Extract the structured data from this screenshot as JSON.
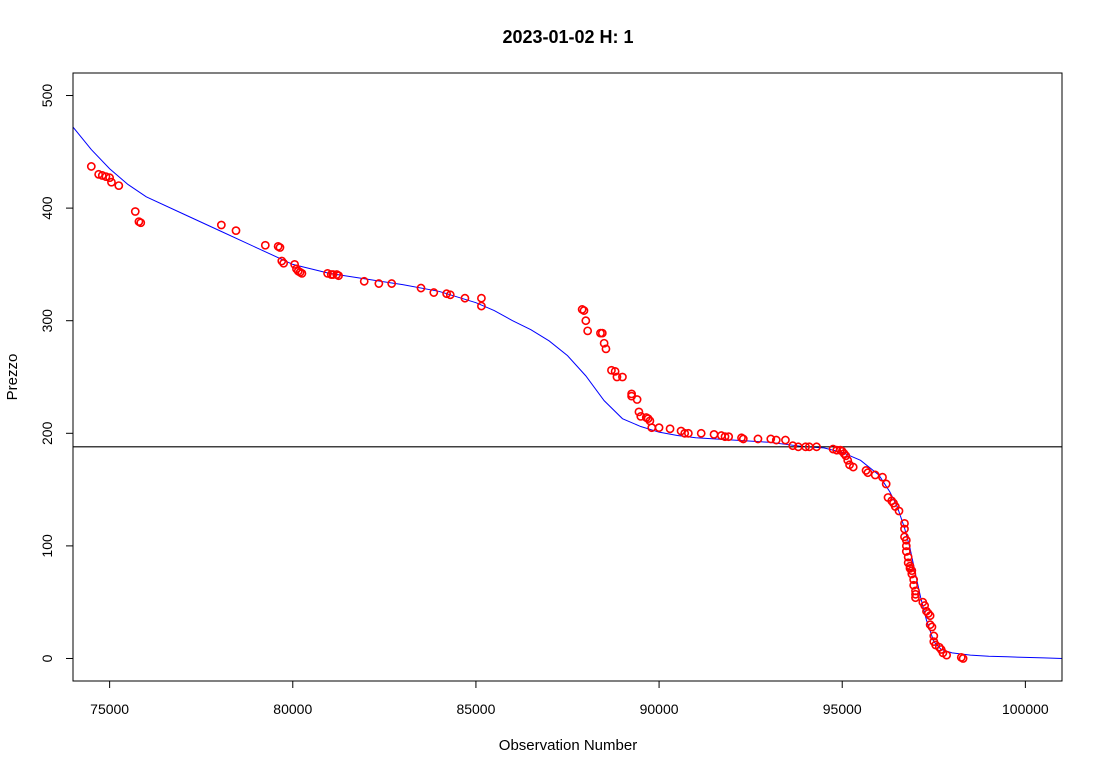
{
  "chart_data": {
    "type": "scatter",
    "title": "2023-01-02 H: 1",
    "xlabel": "Observation Number",
    "ylabel": "Prezzo",
    "xlim": [
      74000,
      101000
    ],
    "ylim": [
      -20,
      520
    ],
    "x_ticks": [
      75000,
      80000,
      85000,
      90000,
      95000,
      100000
    ],
    "y_ticks": [
      0,
      100,
      200,
      300,
      400,
      500
    ],
    "grid": false,
    "legend": "none",
    "colors": {
      "points": "#ff0000",
      "fit_line": "#0000ff",
      "hline": "#000000",
      "frame": "#000000"
    },
    "hline": 188,
    "series": [
      {
        "kind": "points",
        "x": [
          74500,
          74700,
          74800,
          74900,
          75000,
          75050,
          75250,
          75700,
          75800,
          75850,
          78050,
          78450,
          79250,
          79600,
          79650,
          79700,
          79750,
          80050,
          80100,
          80150,
          80200,
          80250,
          80950,
          81050,
          81100,
          81200,
          81250,
          81950,
          82350,
          82700,
          83500,
          83850,
          84200,
          84300,
          84700,
          85150,
          85150,
          87900,
          87950,
          88000,
          88050,
          88400,
          88450,
          88500,
          88550,
          88700,
          88800,
          88850,
          89000,
          89250,
          89250,
          89400,
          89450,
          89500,
          89650,
          89700,
          89750,
          89800,
          90000,
          90300,
          90600,
          90700,
          90800,
          91150,
          91500,
          91700,
          91800,
          91900,
          92250,
          92300,
          92700,
          93050,
          93200,
          93450,
          93650,
          93800,
          94000,
          94100,
          94300,
          94750,
          94850,
          94950,
          95000,
          95050,
          95100,
          95150,
          95200,
          95300,
          95650,
          95700,
          95900,
          96100,
          96200,
          96250,
          96350,
          96400,
          96450,
          96550,
          96700,
          96700,
          96700,
          96750,
          96750,
          96750,
          96800,
          96800,
          96850,
          96850,
          96900,
          96900,
          96950,
          96950,
          97000,
          97000,
          97000,
          97200,
          97250,
          97300,
          97350,
          97400,
          97400,
          97450,
          97500,
          97500,
          97550,
          97650,
          97700,
          97750,
          97850,
          98250,
          98300
        ],
        "y": [
          437,
          430,
          429,
          428,
          427,
          423,
          420,
          397,
          388,
          387,
          385,
          380,
          367,
          366,
          365,
          353,
          351,
          350,
          346,
          344,
          343,
          342,
          342,
          341,
          341,
          341,
          340,
          335,
          333,
          333,
          329,
          325,
          324,
          323,
          320,
          320,
          313,
          310,
          309,
          300,
          291,
          289,
          289,
          280,
          275,
          256,
          255,
          250,
          250,
          235,
          233,
          230,
          219,
          215,
          214,
          213,
          211,
          205,
          205,
          204,
          202,
          200,
          200,
          200,
          199,
          198,
          197,
          197,
          196,
          195,
          195,
          195,
          194,
          194,
          189,
          188,
          188,
          188,
          188,
          186,
          185,
          185,
          184,
          182,
          180,
          176,
          172,
          170,
          167,
          165,
          163,
          161,
          155,
          143,
          140,
          138,
          135,
          131,
          120,
          115,
          108,
          105,
          100,
          95,
          90,
          85,
          82,
          80,
          78,
          75,
          70,
          65,
          60,
          57,
          54,
          50,
          47,
          42,
          40,
          38,
          30,
          28,
          20,
          15,
          12,
          10,
          8,
          5,
          3,
          1,
          0
        ]
      },
      {
        "kind": "fit_line",
        "x": [
          74000,
          74500,
          75000,
          75500,
          76000,
          77000,
          78000,
          79000,
          80000,
          81000,
          82000,
          83000,
          84000,
          85000,
          85500,
          86000,
          86500,
          87000,
          87500,
          88000,
          88500,
          89000,
          89500,
          90000,
          90500,
          91000,
          91500,
          92000,
          92500,
          93000,
          93500,
          94000,
          94500,
          95000,
          95500,
          96000,
          96300,
          96500,
          96700,
          96850,
          97000,
          97150,
          97300,
          97500,
          97700,
          98000,
          98500,
          99000,
          99500,
          100000,
          100500,
          101000
        ],
        "y": [
          472,
          452,
          435,
          421,
          410,
          395,
          380,
          365,
          350,
          342,
          337,
          332,
          326,
          316,
          309,
          300,
          292,
          282,
          269,
          251,
          229,
          213,
          206,
          201,
          198,
          196,
          195,
          194,
          193,
          192,
          190,
          188,
          187,
          183,
          176,
          163,
          148,
          135,
          116,
          98,
          75,
          53,
          34,
          15,
          8,
          5,
          3,
          2,
          1.5,
          1,
          0.5,
          0
        ]
      }
    ]
  }
}
